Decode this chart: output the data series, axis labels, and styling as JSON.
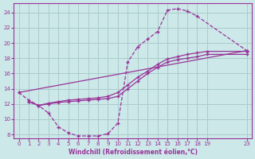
{
  "bg_color": "#cce8e8",
  "grid_color": "#aacccc",
  "line_color": "#993399",
  "marker_color": "#993399",
  "xlabel": "Windchill (Refroidissement éolien,°C)",
  "xlabel_color": "#993399",
  "xtick_color": "#993399",
  "ytick_color": "#993399",
  "xlim": [
    -0.5,
    23.5
  ],
  "ylim": [
    7.5,
    25.2
  ],
  "yticks": [
    8,
    10,
    12,
    14,
    16,
    18,
    20,
    22,
    24
  ],
  "xticks": [
    0,
    1,
    2,
    3,
    4,
    5,
    6,
    7,
    8,
    9,
    10,
    11,
    12,
    13,
    14,
    15,
    16,
    17,
    18,
    19,
    23
  ],
  "series": [
    {
      "x": [
        0,
        1,
        2,
        3,
        4,
        5,
        6,
        7,
        8,
        9,
        10,
        11,
        12,
        13,
        14,
        15,
        16,
        17,
        18,
        23
      ],
      "y": [
        13.5,
        12.5,
        11.8,
        10.8,
        9.0,
        8.2,
        7.8,
        7.8,
        7.8,
        8.1,
        9.5,
        17.5,
        19.5,
        20.5,
        21.5,
        24.3,
        24.5,
        24.2,
        23.5,
        19.0
      ],
      "linestyle": "--"
    },
    {
      "x": [
        0,
        23
      ],
      "y": [
        13.5,
        19.0
      ],
      "linestyle": "-"
    },
    {
      "x": [
        1,
        2,
        3,
        4,
        5,
        6,
        7,
        8,
        9,
        10,
        11,
        12,
        13,
        14,
        15,
        16,
        17,
        18,
        19,
        23
      ],
      "y": [
        12.3,
        11.8,
        12.0,
        12.2,
        12.3,
        12.4,
        12.5,
        12.6,
        12.7,
        13.0,
        14.0,
        15.0,
        16.0,
        16.8,
        17.5,
        17.8,
        18.0,
        18.2,
        18.5,
        18.5
      ],
      "linestyle": "-"
    },
    {
      "x": [
        1,
        2,
        3,
        4,
        5,
        6,
        7,
        8,
        9,
        10,
        11,
        12,
        13,
        14,
        15,
        16,
        17,
        18,
        19,
        23
      ],
      "y": [
        12.3,
        11.8,
        12.1,
        12.3,
        12.5,
        12.6,
        12.7,
        12.8,
        13.0,
        13.5,
        14.5,
        15.5,
        16.3,
        17.2,
        17.9,
        18.2,
        18.5,
        18.7,
        18.9,
        18.9
      ],
      "linestyle": "-"
    }
  ]
}
